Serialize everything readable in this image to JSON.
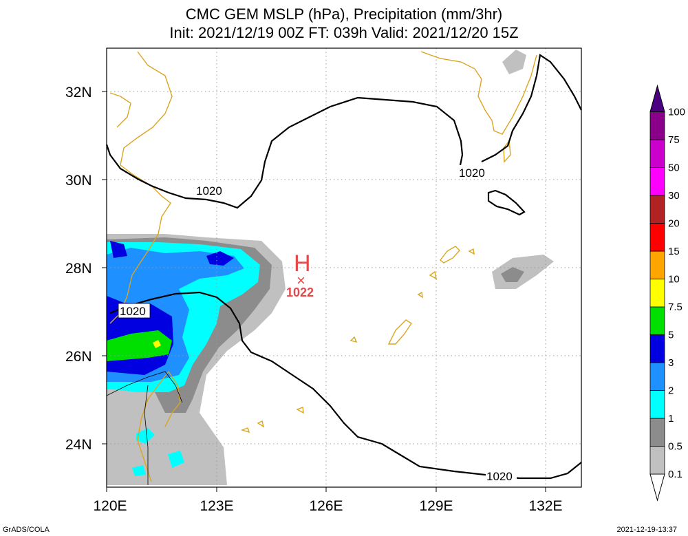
{
  "title": {
    "line1": "CMC GEM MSLP (hPa), Precipitation (mm/3hr)",
    "line2": "Init: 2021/12/19 00Z  FT: 039h  Valid: 2021/12/20 15Z"
  },
  "axes": {
    "lat_labels": [
      "32N",
      "30N",
      "28N",
      "26N",
      "24N"
    ],
    "lon_labels": [
      "120E",
      "123E",
      "126E",
      "129E",
      "132E"
    ]
  },
  "isobar_labels": [
    "1020",
    "1020",
    "1020",
    "1020"
  ],
  "high": {
    "symbol": "H",
    "marker": "×",
    "pressure": "1022"
  },
  "colorbar": {
    "levels": [
      "0.1",
      "0.5",
      "1",
      "2",
      "3",
      "5",
      "7.5",
      "10",
      "15",
      "20",
      "30",
      "50",
      "75",
      "100"
    ],
    "colors": [
      "#c0c0c0",
      "#8c8c8c",
      "#00ffff",
      "#1e90ff",
      "#0000e0",
      "#00e000",
      "#ffff00",
      "#ffa500",
      "#ff0000",
      "#b22222",
      "#ff00ff",
      "#cc00cc",
      "#8b008b",
      "#4b0082"
    ]
  },
  "footer": {
    "left": "GrADS/COLA",
    "right": "2021-12-19-13:37"
  }
}
